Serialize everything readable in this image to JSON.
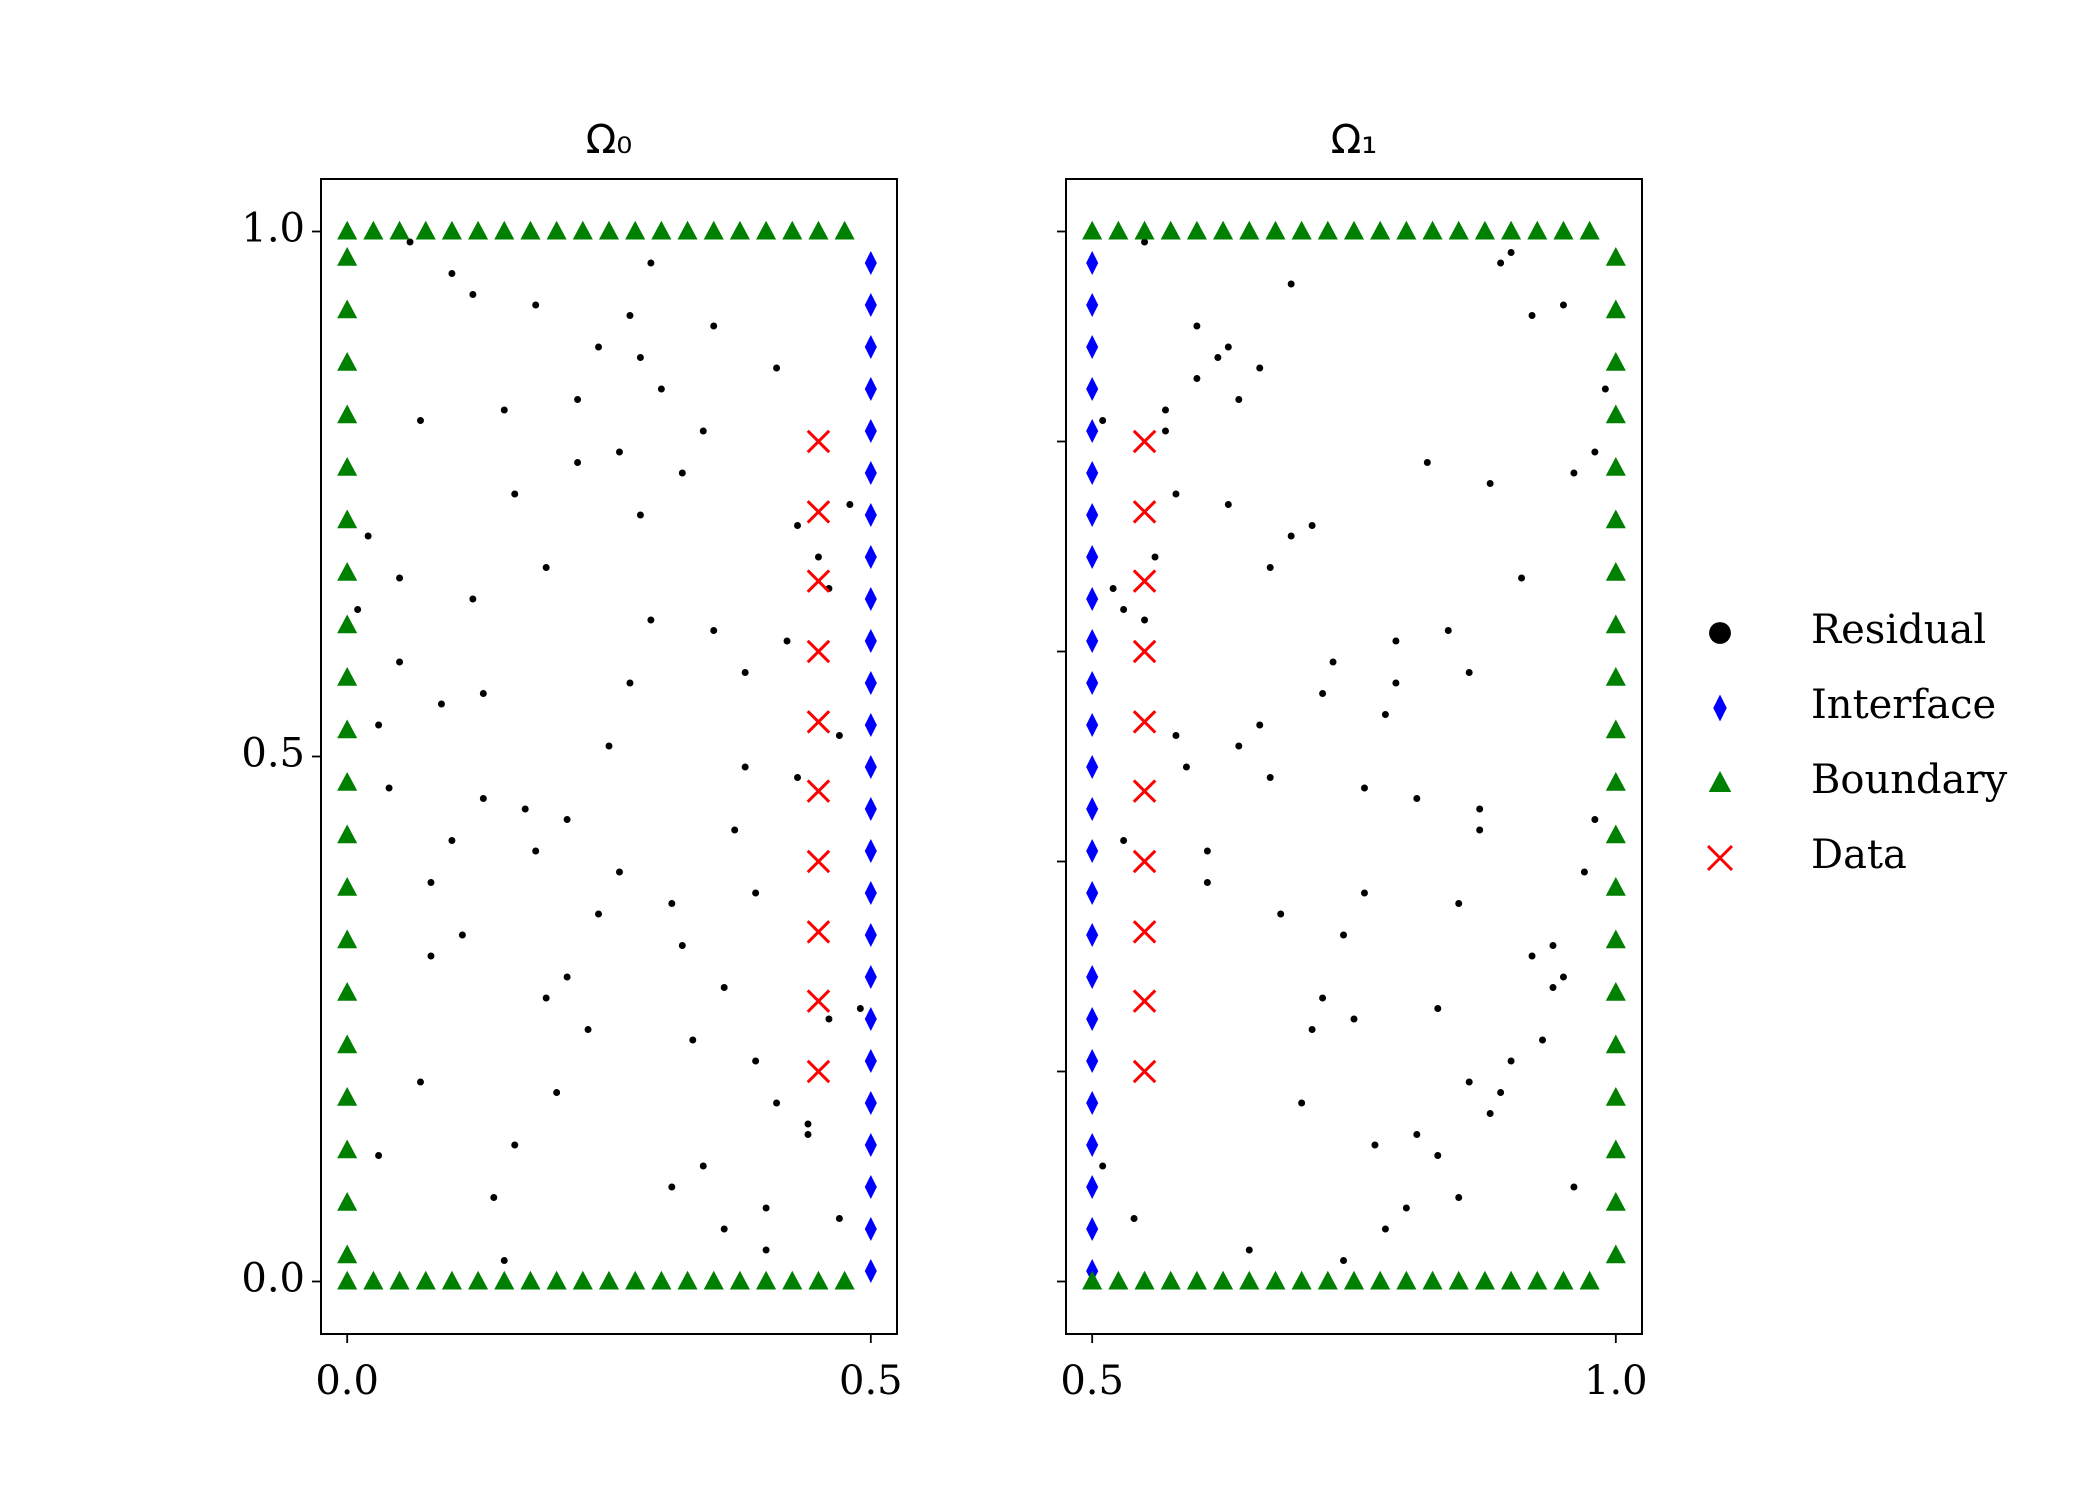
{
  "chart_data": [
    {
      "type": "scatter",
      "title": "Ω₀",
      "xlim": [
        -0.025,
        0.525
      ],
      "ylim": [
        -0.05,
        1.05
      ],
      "xticks": [
        {
          "value": 0,
          "label": "0.0"
        },
        {
          "value": 0.5,
          "label": "0.5"
        }
      ],
      "yticks": [
        {
          "value": 0,
          "label": "0.0"
        },
        {
          "value": 0.5,
          "label": "0.5"
        },
        {
          "value": 1,
          "label": "1.0"
        }
      ],
      "series": [
        {
          "color": "#000000",
          "marker": "circle",
          "x": [
            0.03,
            0.41,
            0.17,
            0.29,
            0.08,
            0.36,
            0.22,
            0.47,
            0.12,
            0.33,
            0.05,
            0.26,
            0.44,
            0.15,
            0.38,
            0.19,
            0.02,
            0.31,
            0.43,
            0.1,
            0.24,
            0.35,
            0.07,
            0.48,
            0.18,
            0.28,
            0.4,
            0.13,
            0.21,
            0.34,
            0.04,
            0.46,
            0.16,
            0.27,
            0.39,
            0.09,
            0.23,
            0.32,
            0.42,
            0.14,
            0.06,
            0.37,
            0.2,
            0.45,
            0.11,
            0.3,
            0.25,
            0.49,
            0.01,
            0.34,
            0.18,
            0.43,
            0.08,
            0.27,
            0.39,
            0.13,
            0.22,
            0.47,
            0.05,
            0.32,
            0.16,
            0.41,
            0.29,
            0.1,
            0.36,
            0.03,
            0.24,
            0.44,
            0.19,
            0.31,
            0.07,
            0.38,
            0.15,
            0.26,
            0.46,
            0.12,
            0.35,
            0.21,
            0.4,
            0.28
          ],
          "values": [
            0.12,
            0.87,
            0.45,
            0.63,
            0.31,
            0.05,
            0.78,
            0.52,
            0.94,
            0.23,
            0.67,
            0.39,
            0.15,
            0.83,
            0.58,
            0.27,
            0.71,
            0.09,
            0.48,
            0.96,
            0.35,
            0.62,
            0.19,
            0.74,
            0.41,
            0.88,
            0.03,
            0.56,
            0.29,
            0.81,
            0.47,
            0.66,
            0.13,
            0.92,
            0.37,
            0.55,
            0.24,
            0.77,
            0.61,
            0.08,
            0.99,
            0.43,
            0.18,
            0.69,
            0.33,
            0.85,
            0.51,
            0.26,
            0.64,
            0.11,
            0.93,
            0.72,
            0.38,
            0.57,
            0.21,
            0.46,
            0.84,
            0.06,
            0.59,
            0.32,
            0.75,
            0.17,
            0.97,
            0.42,
            0.28,
            0.53,
            0.89,
            0.14,
            0.68,
            0.36,
            0.82,
            0.49,
            0.02,
            0.79,
            0.25,
            0.65,
            0.91,
            0.44,
            0.07,
            0.73
          ]
        },
        {
          "color": "#0000ff",
          "marker": "diamond",
          "x": [
            0.5,
            0.5,
            0.5,
            0.5,
            0.5,
            0.5,
            0.5,
            0.5,
            0.5,
            0.5,
            0.5,
            0.5,
            0.5,
            0.5,
            0.5,
            0.5,
            0.5,
            0.5,
            0.5,
            0.5,
            0.5,
            0.5,
            0.5,
            0.5,
            0.5
          ],
          "values": [
            0.01,
            0.05,
            0.09,
            0.13,
            0.17,
            0.21,
            0.25,
            0.29,
            0.33,
            0.37,
            0.41,
            0.45,
            0.49,
            0.53,
            0.57,
            0.61,
            0.65,
            0.69,
            0.73,
            0.77,
            0.81,
            0.85,
            0.89,
            0.93,
            0.97
          ]
        },
        {
          "color": "#008000",
          "marker": "triangle",
          "x": [
            0,
            0,
            0,
            0,
            0,
            0,
            0,
            0,
            0,
            0,
            0,
            0,
            0,
            0,
            0,
            0,
            0,
            0,
            0,
            0,
            0,
            0.025,
            0.05,
            0.075,
            0.1,
            0.125,
            0.15,
            0.175,
            0.2,
            0.225,
            0.25,
            0.275,
            0.3,
            0.325,
            0.35,
            0.375,
            0.4,
            0.425,
            0.45,
            0.475,
            0,
            0.025,
            0.05,
            0.075,
            0.1,
            0.125,
            0.15,
            0.175,
            0.2,
            0.225,
            0.25,
            0.275,
            0.3,
            0.325,
            0.35,
            0.375,
            0.4,
            0.425,
            0.45,
            0.475
          ],
          "values": [
            0.025,
            0.075,
            0.125,
            0.175,
            0.225,
            0.275,
            0.325,
            0.375,
            0.425,
            0.475,
            0.525,
            0.575,
            0.625,
            0.675,
            0.725,
            0.775,
            0.825,
            0.875,
            0.925,
            0.975,
            1,
            1,
            1,
            1,
            1,
            1,
            1,
            1,
            1,
            1,
            1,
            1,
            1,
            1,
            1,
            1,
            1,
            1,
            1,
            1,
            0,
            0,
            0,
            0,
            0,
            0,
            0,
            0,
            0,
            0,
            0,
            0,
            0,
            0,
            0,
            0,
            0,
            0,
            0,
            0
          ]
        },
        {
          "color": "#ff0000",
          "marker": "x",
          "x": [
            0.45,
            0.45,
            0.45,
            0.45,
            0.45,
            0.45,
            0.45,
            0.45,
            0.45,
            0.45
          ],
          "values": [
            0.2,
            0.267,
            0.333,
            0.4,
            0.467,
            0.533,
            0.6,
            0.667,
            0.733,
            0.8
          ]
        }
      ]
    },
    {
      "type": "scatter",
      "title": "Ω₁",
      "xlim": [
        0.475,
        1.025
      ],
      "ylim": [
        -0.05,
        1.05
      ],
      "xticks": [
        {
          "value": 0.5,
          "label": "0.5"
        },
        {
          "value": 1,
          "label": "1.0"
        }
      ],
      "yticks": [
        0,
        0.2,
        0.4,
        0.6,
        0.8,
        1
      ],
      "show_ytick_labels": false,
      "legend": "right outside",
      "series": [
        {
          "name": "Residual",
          "color": "#000000",
          "marker": "circle",
          "x": [
            0.78,
            0.9,
            0.62,
            0.85,
            0.71,
            0.96,
            0.55,
            0.76,
            0.69,
            0.94,
            0.57,
            0.81,
            0.73,
            0.53,
            0.88,
            0.65,
            0.91,
            0.74,
            0.6,
            0.86,
            0.67,
            0.99,
            0.75,
            0.84,
            0.51,
            0.98,
            0.61,
            0.89,
            0.72,
            0.8,
            0.56,
            0.92,
            0.64,
            0.87,
            0.7,
            0.95,
            0.58,
            0.83,
            0.63,
            0.97,
            0.54,
            0.79,
            0.66,
            0.93,
            0.59,
            0.82,
            0.68,
            0.77,
            0.52,
            0.9,
            0.61,
            0.86,
            0.74,
            0.57,
            0.95,
            0.69,
            0.81,
            0.63,
            0.88,
            0.53,
            0.76,
            0.92,
            0.66,
            0.85,
            0.58,
            0.98,
            0.72,
            0.6,
            0.89,
            0.79,
            0.55,
            0.94,
            0.67,
            0.83,
            0.51,
            0.87,
            0.71,
            0.96,
            0.64,
            0.78
          ],
          "values": [
            0.54,
            0.21,
            0.88,
            0.36,
            0.72,
            0.09,
            0.63,
            0.47,
            0.95,
            0.28,
            0.81,
            0.14,
            0.59,
            0.42,
            0.76,
            0.03,
            0.67,
            0.33,
            0.91,
            0.19,
            0.48,
            0.85,
            0.25,
            0.62,
            0.11,
            0.79,
            0.38,
            0.97,
            0.56,
            0.07,
            0.69,
            0.31,
            0.84,
            0.45,
            0.17,
            0.93,
            0.52,
            0.26,
            0.74,
            0.39,
            0.06,
            0.61,
            0.87,
            0.23,
            0.49,
            0.78,
            0.35,
            0.13,
            0.66,
            0.98,
            0.41,
            0.58,
            0.02,
            0.83,
            0.29,
            0.71,
            0.46,
            0.89,
            0.16,
            0.64,
            0.37,
            0.92,
            0.53,
            0.08,
            0.75,
            0.44,
            0.27,
            0.86,
            0.18,
            0.57,
            0.99,
            0.32,
            0.68,
            0.12,
            0.82,
            0.43,
            0.24,
            0.77,
            0.51,
            0.05
          ]
        },
        {
          "name": "Interface",
          "color": "#0000ff",
          "marker": "diamond",
          "x": [
            0.5,
            0.5,
            0.5,
            0.5,
            0.5,
            0.5,
            0.5,
            0.5,
            0.5,
            0.5,
            0.5,
            0.5,
            0.5,
            0.5,
            0.5,
            0.5,
            0.5,
            0.5,
            0.5,
            0.5,
            0.5,
            0.5,
            0.5,
            0.5,
            0.5
          ],
          "values": [
            0.01,
            0.05,
            0.09,
            0.13,
            0.17,
            0.21,
            0.25,
            0.29,
            0.33,
            0.37,
            0.41,
            0.45,
            0.49,
            0.53,
            0.57,
            0.61,
            0.65,
            0.69,
            0.73,
            0.77,
            0.81,
            0.85,
            0.89,
            0.93,
            0.97
          ]
        },
        {
          "name": "Boundary",
          "color": "#008000",
          "marker": "triangle",
          "x": [
            1,
            1,
            1,
            1,
            1,
            1,
            1,
            1,
            1,
            1,
            1,
            1,
            1,
            1,
            1,
            1,
            1,
            1,
            1,
            1,
            0.5,
            0.525,
            0.55,
            0.575,
            0.6,
            0.625,
            0.65,
            0.675,
            0.7,
            0.725,
            0.75,
            0.775,
            0.8,
            0.825,
            0.85,
            0.875,
            0.9,
            0.925,
            0.95,
            0.975,
            0.5,
            0.525,
            0.55,
            0.575,
            0.6,
            0.625,
            0.65,
            0.675,
            0.7,
            0.725,
            0.75,
            0.775,
            0.8,
            0.825,
            0.85,
            0.875,
            0.9,
            0.925,
            0.95,
            0.975
          ],
          "values": [
            0.025,
            0.075,
            0.125,
            0.175,
            0.225,
            0.275,
            0.325,
            0.375,
            0.425,
            0.475,
            0.525,
            0.575,
            0.625,
            0.675,
            0.725,
            0.775,
            0.825,
            0.875,
            0.925,
            0.975,
            1,
            1,
            1,
            1,
            1,
            1,
            1,
            1,
            1,
            1,
            1,
            1,
            1,
            1,
            1,
            1,
            1,
            1,
            1,
            1,
            0,
            0,
            0,
            0,
            0,
            0,
            0,
            0,
            0,
            0,
            0,
            0,
            0,
            0,
            0,
            0,
            0,
            0,
            0,
            0
          ]
        },
        {
          "name": "Data",
          "color": "#ff0000",
          "marker": "x",
          "x": [
            0.55,
            0.55,
            0.55,
            0.55,
            0.55,
            0.55,
            0.55,
            0.55,
            0.55,
            0.55
          ],
          "values": [
            0.2,
            0.267,
            0.333,
            0.4,
            0.467,
            0.533,
            0.6,
            0.667,
            0.733,
            0.8
          ]
        }
      ]
    }
  ]
}
